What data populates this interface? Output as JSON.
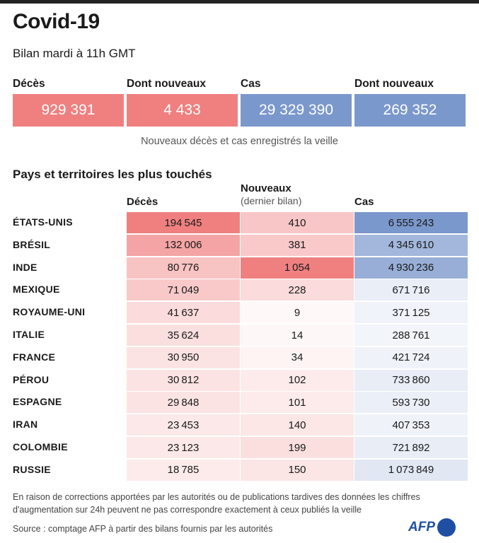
{
  "title": "Covid-19",
  "subtitle": "Bilan mardi à 11h GMT",
  "summary": {
    "labels": [
      "Décès",
      "Dont nouveaux",
      "Cas",
      "Dont nouveaux"
    ],
    "values": [
      "929 391",
      "4 433",
      "29 329 390",
      "269 352"
    ],
    "note": "Nouveaux décès et cas enregistrés la veille"
  },
  "table_section_title": "Pays et territoires les plus touchés",
  "colors": {
    "deaths": "#f08080",
    "cases": "#7b98cc"
  },
  "chart_data": {
    "type": "table",
    "columns": [
      {
        "label": "Décès",
        "sublabel": ""
      },
      {
        "label": "Nouveaux",
        "sublabel": "(dernier bilan)"
      },
      {
        "label": "Cas",
        "sublabel": ""
      }
    ],
    "rows": [
      {
        "country": "ÉTATS-UNIS",
        "deaths": 194545,
        "new": 410,
        "cases": 6555243
      },
      {
        "country": "BRÉSIL",
        "deaths": 132006,
        "new": 381,
        "cases": 4345610
      },
      {
        "country": "INDE",
        "deaths": 80776,
        "new": 1054,
        "cases": 4930236
      },
      {
        "country": "MEXIQUE",
        "deaths": 71049,
        "new": 228,
        "cases": 671716
      },
      {
        "country": "ROYAUME-UNI",
        "deaths": 41637,
        "new": 9,
        "cases": 371125
      },
      {
        "country": "ITALIE",
        "deaths": 35624,
        "new": 14,
        "cases": 288761
      },
      {
        "country": "FRANCE",
        "deaths": 30950,
        "new": 34,
        "cases": 421724
      },
      {
        "country": "PÉROU",
        "deaths": 30812,
        "new": 102,
        "cases": 733860
      },
      {
        "country": "ESPAGNE",
        "deaths": 29848,
        "new": 101,
        "cases": 593730
      },
      {
        "country": "IRAN",
        "deaths": 23453,
        "new": 140,
        "cases": 407353
      },
      {
        "country": "COLOMBIE",
        "deaths": 23123,
        "new": 199,
        "cases": 721892
      },
      {
        "country": "RUSSIE",
        "deaths": 18785,
        "new": 150,
        "cases": 1073849
      }
    ]
  },
  "footnote_line1": "En raison de corrections apportées par les autorités ou de publications tardives des données  les chiffres",
  "footnote_line2": "d'augmentation sur 24h peuvent ne pas correspondre exactement à ceux publiés la veille",
  "source": "Source : comptage AFP à partir des bilans fournis par les autorités",
  "logo": "AFP"
}
